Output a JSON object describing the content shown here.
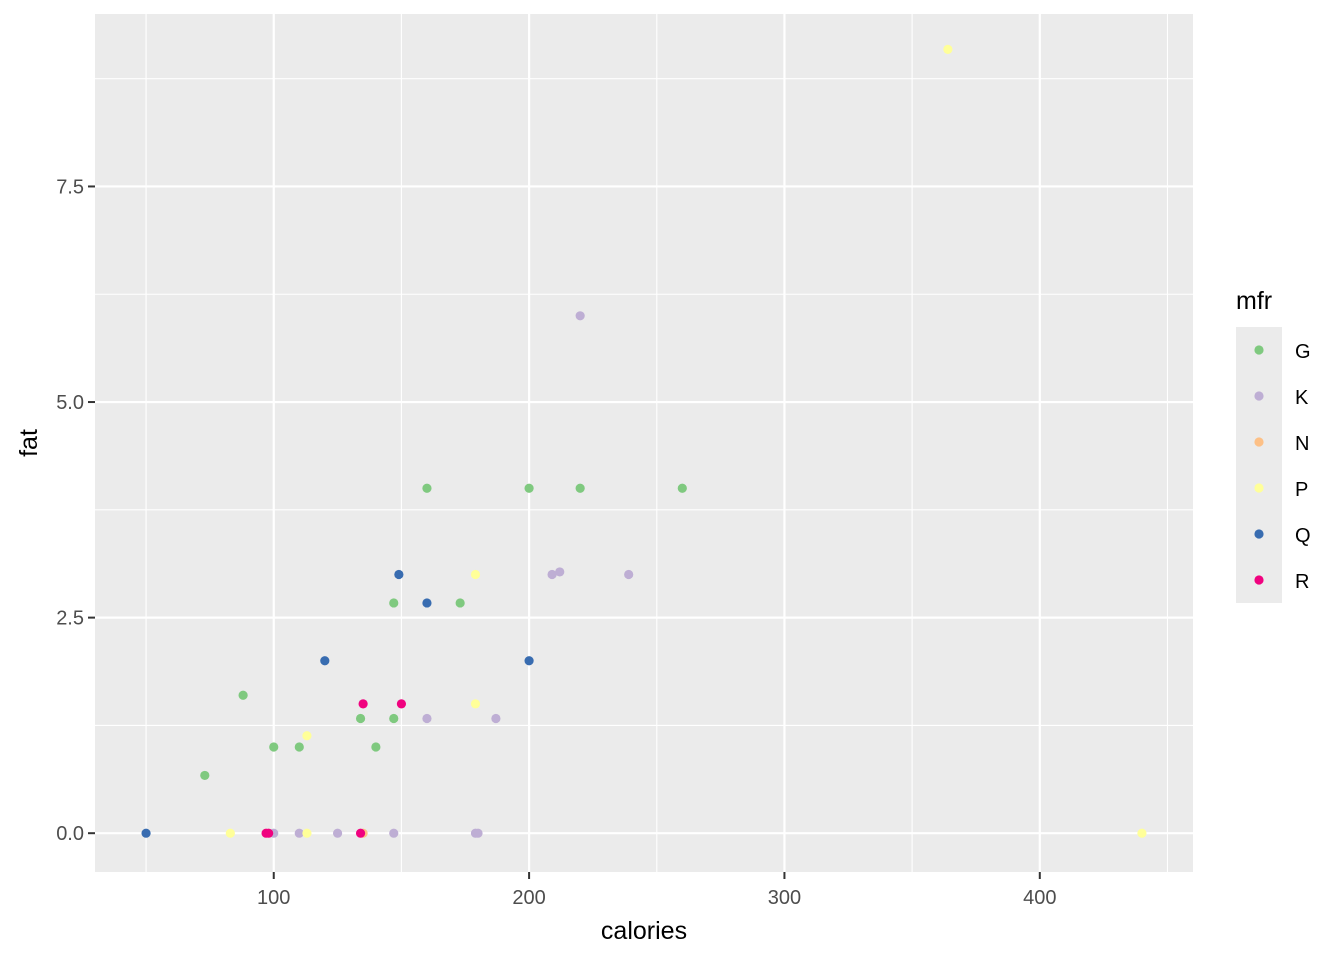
{
  "chart_data": {
    "type": "scatter",
    "title": "",
    "xlabel": "calories",
    "ylabel": "fat",
    "xlim": [
      30,
      460
    ],
    "ylim": [
      -0.45,
      9.5
    ],
    "x_ticks": [
      100,
      200,
      300,
      400
    ],
    "x_tick_labels": [
      "100",
      "200",
      "300",
      "400"
    ],
    "y_ticks": [
      0,
      2.5,
      5,
      7.5
    ],
    "y_tick_labels": [
      "0.0",
      "2.5",
      "5.0",
      "7.5"
    ],
    "grid": true,
    "panel_background": "#ebebeb",
    "legend": {
      "title": "mfr",
      "position": "right"
    },
    "series": [
      {
        "name": "G",
        "color": "#7fc97f",
        "points": [
          [
            73,
            0.67
          ],
          [
            88,
            1.6
          ],
          [
            100,
            1
          ],
          [
            110,
            1
          ],
          [
            134,
            1.33
          ],
          [
            140,
            1
          ],
          [
            147,
            1.33
          ],
          [
            147,
            2.67
          ],
          [
            160,
            4
          ],
          [
            173,
            2.67
          ],
          [
            200,
            4
          ],
          [
            220,
            4
          ],
          [
            260,
            4
          ]
        ]
      },
      {
        "name": "K",
        "color": "#beaed4",
        "points": [
          [
            100,
            0
          ],
          [
            110,
            0
          ],
          [
            125,
            0
          ],
          [
            147,
            0
          ],
          [
            160,
            1.33
          ],
          [
            179,
            0
          ],
          [
            180,
            0
          ],
          [
            187,
            1.33
          ],
          [
            209,
            3
          ],
          [
            212,
            3.03
          ],
          [
            220,
            6
          ],
          [
            239,
            3
          ]
        ]
      },
      {
        "name": "N",
        "color": "#fdc086",
        "points": [
          [
            135,
            0
          ]
        ]
      },
      {
        "name": "P",
        "color": "#ffff99",
        "points": [
          [
            83,
            0
          ],
          [
            113,
            1.13
          ],
          [
            113,
            0
          ],
          [
            179,
            3
          ],
          [
            179,
            1.5
          ],
          [
            364,
            9.09
          ],
          [
            440,
            0
          ]
        ]
      },
      {
        "name": "Q",
        "color": "#386cb0",
        "points": [
          [
            50,
            0
          ],
          [
            120,
            2
          ],
          [
            149,
            3
          ],
          [
            160,
            2.67
          ],
          [
            200,
            2
          ]
        ]
      },
      {
        "name": "R",
        "color": "#f0027f",
        "points": [
          [
            97,
            0
          ],
          [
            98,
            0
          ],
          [
            134,
            0
          ],
          [
            135,
            1.5
          ],
          [
            150,
            1.5
          ]
        ]
      }
    ]
  }
}
